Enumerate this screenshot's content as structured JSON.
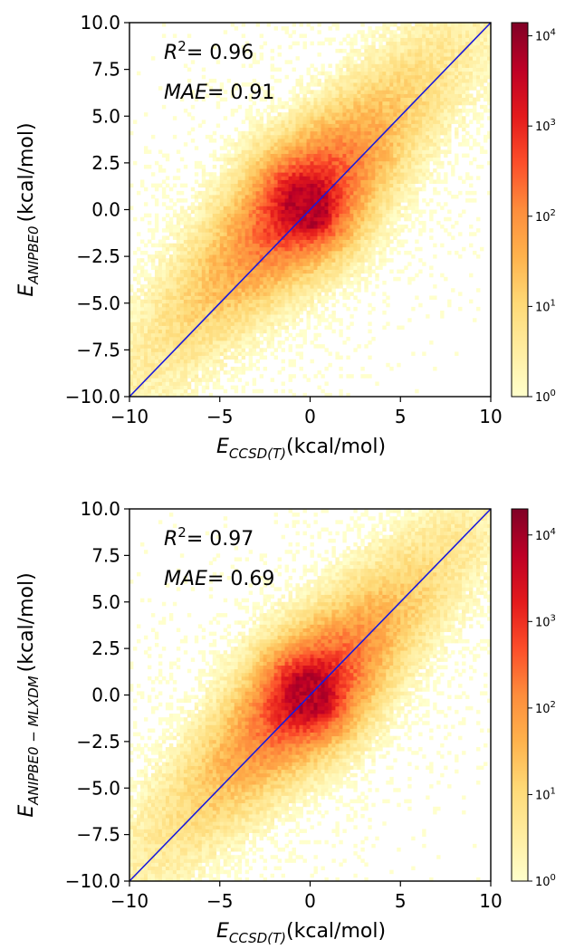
{
  "chart_data": [
    {
      "type": "heatmap",
      "title": "",
      "xlabel": {
        "main": "E",
        "sub": "CCSD(T)",
        "unit": "(kcal/mol)"
      },
      "ylabel": {
        "main": "E",
        "sub": "ANIPBE0",
        "unit": "(kcal/mol)"
      },
      "xlim": [
        -10,
        10
      ],
      "ylim": [
        -10,
        10
      ],
      "x_ticks": [
        -10,
        -5,
        0,
        5,
        10
      ],
      "x_tick_labels": [
        "−10",
        "−5",
        "0",
        "5",
        "10"
      ],
      "y_ticks": [
        10,
        7.5,
        5,
        2.5,
        0,
        -2.5,
        -5,
        -7.5,
        -10
      ],
      "y_tick_labels": [
        "10.0",
        "7.5",
        "5.0",
        "2.5",
        "0.0",
        "−2.5",
        "−5.0",
        "−7.5",
        "−10.0"
      ],
      "annotations": [
        {
          "label": "R",
          "sup": "2",
          "text": "= 0.96"
        },
        {
          "label": "MAE",
          "sup": "",
          "text": "= 0.91"
        }
      ],
      "reference_line": {
        "from": [
          -10,
          -10
        ],
        "to": [
          10,
          10
        ],
        "color": "#1a1adb"
      },
      "colorbar": {
        "scale": "log",
        "max_count": 14000,
        "ticks": [
          1,
          10,
          100,
          1000,
          10000
        ],
        "tick_labels": [
          {
            "base": "10",
            "exp": "0"
          },
          {
            "base": "10",
            "exp": "1"
          },
          {
            "base": "10",
            "exp": "2"
          },
          {
            "base": "10",
            "exp": "3"
          },
          {
            "base": "10",
            "exp": "4"
          }
        ],
        "colormap": "YlOrRd"
      },
      "distribution": {
        "peak": [
          0,
          0
        ],
        "spread": 2.3,
        "bias": 0.6,
        "peak_count": 14000
      }
    },
    {
      "type": "heatmap",
      "title": "",
      "xlabel": {
        "main": "E",
        "sub": "CCSD(T)",
        "unit": "(kcal/mol)"
      },
      "ylabel": {
        "main": "E",
        "sub": "ANIPBE0 − MLXDM",
        "unit": "(kcal/mol)"
      },
      "xlim": [
        -10,
        10
      ],
      "ylim": [
        -10,
        10
      ],
      "x_ticks": [
        -10,
        -5,
        0,
        5,
        10
      ],
      "x_tick_labels": [
        "−10",
        "−5",
        "0",
        "5",
        "10"
      ],
      "y_ticks": [
        10,
        7.5,
        5,
        2.5,
        0,
        -2.5,
        -5,
        -7.5,
        -10
      ],
      "y_tick_labels": [
        "10.0",
        "7.5",
        "5.0",
        "2.5",
        "0.0",
        "−2.5",
        "−5.0",
        "−7.5",
        "−10.0"
      ],
      "annotations": [
        {
          "label": "R",
          "sup": "2",
          "text": "= 0.97"
        },
        {
          "label": "MAE",
          "sup": "",
          "text": "= 0.69"
        }
      ],
      "reference_line": {
        "from": [
          -10,
          -10
        ],
        "to": [
          10,
          10
        ],
        "color": "#1a1adb"
      },
      "colorbar": {
        "scale": "log",
        "max_count": 20000,
        "ticks": [
          1,
          10,
          100,
          1000,
          10000
        ],
        "tick_labels": [
          {
            "base": "10",
            "exp": "0"
          },
          {
            "base": "10",
            "exp": "1"
          },
          {
            "base": "10",
            "exp": "2"
          },
          {
            "base": "10",
            "exp": "3"
          },
          {
            "base": "10",
            "exp": "4"
          }
        ],
        "colormap": "YlOrRd"
      },
      "distribution": {
        "peak": [
          0,
          0
        ],
        "spread": 2.2,
        "bias": 0.2,
        "peak_count": 20000
      }
    }
  ]
}
